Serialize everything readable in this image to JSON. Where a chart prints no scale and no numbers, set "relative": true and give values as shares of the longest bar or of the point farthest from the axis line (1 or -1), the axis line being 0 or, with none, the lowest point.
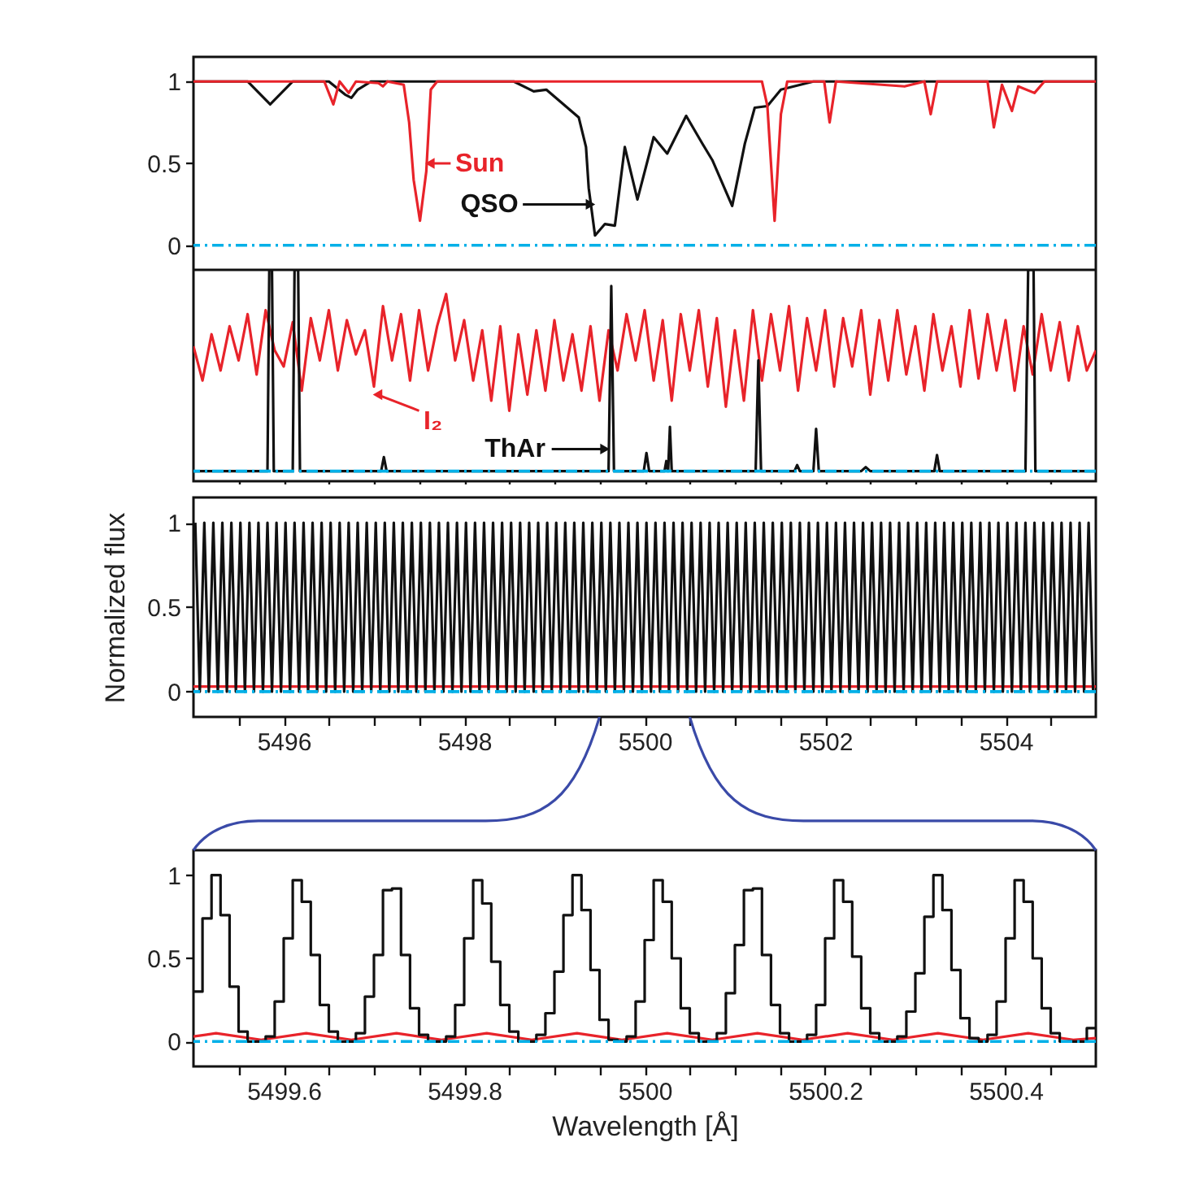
{
  "chart_data": [
    {
      "type": "line",
      "xlim": [
        5495,
        5505
      ],
      "ylim": [
        -0.15,
        1.15
      ],
      "tick_labels": "y",
      "xticks": [
        {
          "value": 5495.5,
          "label": null
        },
        5496,
        {
          "value": 5496.5,
          "label": null
        },
        {
          "value": 5497,
          "label": null
        },
        {
          "value": 5497.5,
          "label": null
        },
        5498,
        {
          "value": 5498.5,
          "label": null
        },
        {
          "value": 5499,
          "label": null
        },
        {
          "value": 5499.5,
          "label": null
        },
        5500,
        {
          "value": 5500.5,
          "label": null
        },
        {
          "value": 5501,
          "label": null
        },
        {
          "value": 5501.5,
          "label": null
        },
        5502,
        {
          "value": 5502.5,
          "label": null
        },
        {
          "value": 5503,
          "label": null
        },
        {
          "value": 5503.5,
          "label": null
        },
        5504,
        {
          "value": 5504.5,
          "label": null
        }
      ],
      "yticks": [
        0,
        0.5,
        1
      ],
      "ref_lines": [
        {
          "axis": "y",
          "value": 0,
          "color": "#00b0e8",
          "line_style": "dashed"
        }
      ],
      "series": [
        {
          "name": "QSO",
          "color": "#111111",
          "x": [
            5495,
            5495.6,
            5495.85,
            5496.1,
            5496.5,
            5496.68,
            5496.75,
            5496.82,
            5496.97,
            5498.55,
            5498.77,
            5498.91,
            5499.06,
            5499.27,
            5499.35,
            5499.38,
            5499.45,
            5499.56,
            5499.67,
            5499.78,
            5499.92,
            5500.1,
            5500.25,
            5500.46,
            5500.64,
            5500.75,
            5500.97,
            5501.11,
            5501.22,
            5501.36,
            5501.51,
            5501.87,
            5505
          ],
          "values": [
            1.0,
            1.0,
            0.86,
            1.0,
            1.0,
            0.92,
            0.9,
            0.95,
            1.0,
            1.0,
            0.94,
            0.95,
            0.88,
            0.78,
            0.6,
            0.35,
            0.06,
            0.13,
            0.12,
            0.6,
            0.28,
            0.66,
            0.56,
            0.79,
            0.62,
            0.52,
            0.24,
            0.62,
            0.84,
            0.85,
            0.95,
            1.0,
            1.0
          ]
        },
        {
          "name": "Sun",
          "color": "#e8232a",
          "x": [
            5495,
            5496.45,
            5496.55,
            5496.62,
            5496.72,
            5496.8,
            5497.05,
            5497.1,
            5497.15,
            5497.33,
            5497.39,
            5497.44,
            5497.51,
            5497.58,
            5497.63,
            5497.7,
            5501.3,
            5501.36,
            5501.44,
            5501.51,
            5501.58,
            5501.99,
            5502.05,
            5502.12,
            5502.88,
            5503.1,
            5503.17,
            5503.24,
            5503.8,
            5503.87,
            5503.96,
            5504.07,
            5504.14,
            5504.32,
            5504.43,
            5505
          ],
          "values": [
            1.0,
            1.0,
            0.86,
            1.0,
            0.93,
            1.0,
            0.99,
            0.97,
            1.0,
            0.98,
            0.75,
            0.4,
            0.15,
            0.45,
            0.95,
            1.0,
            1.0,
            0.85,
            0.15,
            0.8,
            1.0,
            1.0,
            0.75,
            1.0,
            0.97,
            1.0,
            0.8,
            1.0,
            1.0,
            0.72,
            0.98,
            0.82,
            0.97,
            0.93,
            1.0,
            1.0
          ]
        }
      ]
    },
    {
      "type": "line",
      "relative": true,
      "xlim": [
        5495,
        5505
      ],
      "tick_labels": false,
      "xticks": [
        {
          "value": 5495.5,
          "label": null
        },
        5496,
        {
          "value": 5496.5,
          "label": null
        },
        {
          "value": 5497,
          "label": null
        },
        {
          "value": 5497.5,
          "label": null
        },
        5498,
        {
          "value": 5498.5,
          "label": null
        },
        {
          "value": 5499,
          "label": null
        },
        {
          "value": 5499.5,
          "label": null
        },
        5500,
        {
          "value": 5500.5,
          "label": null
        },
        {
          "value": 5501,
          "label": null
        },
        {
          "value": 5501.5,
          "label": null
        },
        5502,
        {
          "value": 5502.5,
          "label": null
        },
        {
          "value": 5503,
          "label": null
        },
        {
          "value": 5503.5,
          "label": null
        },
        5504,
        {
          "value": 5504.5,
          "label": null
        }
      ],
      "ref_lines": [
        {
          "axis": "y",
          "value": 0,
          "color": "#00b0e8",
          "line_style": "dashed"
        }
      ],
      "series": [
        {
          "name": "I₂",
          "color": "#e8232a",
          "x": [
            5495.0,
            5495.1,
            5495.2,
            5495.3,
            5495.4,
            5495.5,
            5495.6,
            5495.7,
            5495.8,
            5495.9,
            5496.0,
            5496.1,
            5496.2,
            5496.3,
            5496.4,
            5496.5,
            5496.6,
            5496.7,
            5496.8,
            5496.9,
            5497.0,
            5497.1,
            5497.2,
            5497.3,
            5497.4,
            5497.5,
            5497.6,
            5497.7,
            5497.8,
            5497.9,
            5498.0,
            5498.1,
            5498.2,
            5498.3,
            5498.4,
            5498.5,
            5498.6,
            5498.7,
            5498.8,
            5498.9,
            5499.0,
            5499.1,
            5499.2,
            5499.3,
            5499.4,
            5499.5,
            5499.6,
            5499.7,
            5499.8,
            5499.9,
            5500.0,
            5500.1,
            5500.2,
            5500.3,
            5500.4,
            5500.5,
            5500.6,
            5500.7,
            5500.8,
            5500.9,
            5501.0,
            5501.1,
            5501.2,
            5501.3,
            5501.4,
            5501.5,
            5501.6,
            5501.7,
            5501.8,
            5501.9,
            5502.0,
            5502.1,
            5502.2,
            5502.3,
            5502.4,
            5502.5,
            5502.6,
            5502.7,
            5502.8,
            5502.9,
            5503.0,
            5503.1,
            5503.2,
            5503.3,
            5503.4,
            5503.5,
            5503.6,
            5503.7,
            5503.8,
            5503.9,
            5504.0,
            5504.1,
            5504.2,
            5504.3,
            5504.4,
            5504.5,
            5504.6,
            5504.7,
            5504.8,
            5504.9,
            5505.0
          ],
          "values": [
            0.62,
            0.45,
            0.68,
            0.5,
            0.72,
            0.55,
            0.78,
            0.48,
            0.8,
            0.6,
            0.52,
            0.74,
            0.4,
            0.76,
            0.55,
            0.8,
            0.5,
            0.75,
            0.58,
            0.7,
            0.42,
            0.82,
            0.55,
            0.78,
            0.45,
            0.8,
            0.5,
            0.72,
            0.88,
            0.55,
            0.75,
            0.45,
            0.7,
            0.35,
            0.72,
            0.3,
            0.68,
            0.38,
            0.7,
            0.4,
            0.75,
            0.45,
            0.68,
            0.4,
            0.72,
            0.35,
            0.7,
            0.5,
            0.78,
            0.55,
            0.8,
            0.45,
            0.75,
            0.35,
            0.78,
            0.5,
            0.8,
            0.42,
            0.76,
            0.32,
            0.7,
            0.35,
            0.8,
            0.45,
            0.78,
            0.5,
            0.82,
            0.4,
            0.76,
            0.5,
            0.8,
            0.42,
            0.76,
            0.52,
            0.8,
            0.38,
            0.75,
            0.45,
            0.8,
            0.48,
            0.72,
            0.4,
            0.78,
            0.5,
            0.72,
            0.42,
            0.8,
            0.46,
            0.78,
            0.5,
            0.75,
            0.4,
            0.72,
            0.48,
            0.78,
            0.5,
            0.74,
            0.45,
            0.72,
            0.5,
            0.6
          ]
        },
        {
          "name": "ThAr",
          "color": "#111111",
          "x": [
            5495,
            5495.82,
            5495.84,
            5495.87,
            5495.89,
            5496.1,
            5496.12,
            5496.16,
            5496.18,
            5497.08,
            5497.11,
            5497.14,
            5499.6,
            5499.63,
            5499.66,
            5499.99,
            5500.02,
            5500.05,
            5500.22,
            5500.24,
            5500.26,
            5500.28,
            5500.3,
            5501.23,
            5501.26,
            5501.29,
            5501.66,
            5501.69,
            5501.72,
            5501.87,
            5501.9,
            5501.93,
            5502.4,
            5502.45,
            5502.5,
            5503.21,
            5503.24,
            5503.27,
            5504.22,
            5504.25,
            5504.31,
            5504.33,
            5505
          ],
          "values": [
            0,
            0,
            1,
            1,
            0,
            0,
            1,
            1,
            0,
            0,
            0.07,
            0,
            0,
            0.92,
            0,
            0,
            0.09,
            0,
            0,
            0.05,
            0,
            0.22,
            0,
            0,
            0.55,
            0,
            0,
            0.03,
            0,
            0,
            0.21,
            0,
            0,
            0.02,
            0,
            0,
            0.08,
            0,
            0,
            1,
            1,
            0,
            0
          ]
        }
      ]
    },
    {
      "type": "line",
      "xlim": [
        5495,
        5505
      ],
      "ylim": [
        -0.15,
        1.15
      ],
      "ylabel": "Normalized flux",
      "xticks": [
        {
          "value": 5495.5,
          "label": null
        },
        5496,
        {
          "value": 5496.5,
          "label": null
        },
        {
          "value": 5497,
          "label": null
        },
        {
          "value": 5497.5,
          "label": null
        },
        5498,
        {
          "value": 5498.5,
          "label": null
        },
        {
          "value": 5499,
          "label": null
        },
        {
          "value": 5499.5,
          "label": null
        },
        5500,
        {
          "value": 5500.5,
          "label": null
        },
        {
          "value": 5501,
          "label": null
        },
        {
          "value": 5501.5,
          "label": null
        },
        5502,
        {
          "value": 5502.5,
          "label": null
        },
        {
          "value": 5503,
          "label": null
        },
        {
          "value": 5503.5,
          "label": null
        },
        5504,
        {
          "value": 5504.5,
          "label": null
        }
      ],
      "yticks": [
        0,
        0.5,
        1
      ],
      "ref_lines": [
        {
          "axis": "y",
          "value": 0,
          "color": "#00b0e8",
          "line_style": "dashed"
        }
      ],
      "series": [
        {
          "color": "#e8232a",
          "x": [
            5495,
            5505
          ],
          "values": [
            0.03,
            0.03
          ]
        },
        {
          "color": "#111111",
          "x": [
            5495.02,
            5495.07,
            5495.12,
            5495.17,
            5495.22,
            5495.27,
            5495.32,
            5495.37,
            5495.42,
            5495.47,
            5495.52,
            5495.57,
            5495.62,
            5495.67,
            5495.72,
            5495.77,
            5495.82,
            5495.87,
            5495.92,
            5495.97,
            5496.02,
            5496.07,
            5496.12,
            5496.17,
            5496.22,
            5496.27,
            5496.32,
            5496.37,
            5496.42,
            5496.47,
            5496.52,
            5496.57,
            5496.62,
            5496.67,
            5496.72,
            5496.77,
            5496.82,
            5496.87,
            5496.92,
            5496.97,
            5497.02,
            5497.07,
            5497.12,
            5497.17,
            5497.22,
            5497.27,
            5497.32,
            5497.37,
            5497.42,
            5497.47,
            5497.52,
            5497.57,
            5497.62,
            5497.67,
            5497.72,
            5497.77,
            5497.82,
            5497.87,
            5497.92,
            5497.97,
            5498.02,
            5498.07,
            5498.12,
            5498.17,
            5498.22,
            5498.27,
            5498.32,
            5498.37,
            5498.42,
            5498.47,
            5498.52,
            5498.57,
            5498.62,
            5498.67,
            5498.72,
            5498.77,
            5498.82,
            5498.87,
            5498.92,
            5498.97,
            5499.02,
            5499.07,
            5499.12,
            5499.17,
            5499.22,
            5499.27,
            5499.32,
            5499.37,
            5499.42,
            5499.47,
            5499.52,
            5499.57,
            5499.62,
            5499.67,
            5499.72,
            5499.77,
            5499.82,
            5499.87,
            5499.92,
            5499.97,
            5500.02,
            5500.07,
            5500.12,
            5500.17,
            5500.22,
            5500.27,
            5500.32,
            5500.37,
            5500.42,
            5500.47,
            5500.52,
            5500.57,
            5500.62,
            5500.67,
            5500.72,
            5500.77,
            5500.82,
            5500.87,
            5500.92,
            5500.97,
            5501.02,
            5501.07,
            5501.12,
            5501.17,
            5501.22,
            5501.27,
            5501.32,
            5501.37,
            5501.42,
            5501.47,
            5501.52,
            5501.57,
            5501.62,
            5501.67,
            5501.72,
            5501.77,
            5501.82,
            5501.87,
            5501.92,
            5501.97,
            5502.02,
            5502.07,
            5502.12,
            5502.17,
            5502.22,
            5502.27,
            5502.32,
            5502.37,
            5502.42,
            5502.47,
            5502.52,
            5502.57,
            5502.62,
            5502.67,
            5502.72,
            5502.77,
            5502.82,
            5502.87,
            5502.92,
            5502.97,
            5503.02,
            5503.07,
            5503.12,
            5503.17,
            5503.22,
            5503.27,
            5503.32,
            5503.37,
            5503.42,
            5503.47,
            5503.52,
            5503.57,
            5503.62,
            5503.67,
            5503.72,
            5503.77,
            5503.82,
            5503.87,
            5503.92,
            5503.97,
            5504.02,
            5504.07,
            5504.12,
            5504.17,
            5504.22,
            5504.27,
            5504.32,
            5504.37,
            5504.42,
            5504.47,
            5504.52,
            5504.57,
            5504.62,
            5504.67,
            5504.72,
            5504.77,
            5504.82,
            5504.87,
            5504.92,
            5504.97
          ],
          "values": [
            1,
            0,
            1,
            0,
            1,
            0,
            1,
            0,
            1,
            0,
            1,
            0,
            1,
            0,
            1,
            0,
            1,
            0,
            1,
            0,
            1,
            0,
            1,
            0,
            1,
            0,
            1,
            0,
            1,
            0,
            1,
            0,
            1,
            0,
            1,
            0,
            1,
            0,
            1,
            0,
            1,
            0,
            1,
            0,
            1,
            0,
            1,
            0,
            1,
            0,
            1,
            0,
            1,
            0,
            1,
            0,
            1,
            0,
            1,
            0,
            1,
            0,
            1,
            0,
            1,
            0,
            1,
            0,
            1,
            0,
            1,
            0,
            1,
            0,
            1,
            0,
            1,
            0,
            1,
            0,
            1,
            0,
            1,
            0,
            1,
            0,
            1,
            0,
            1,
            0,
            1,
            0,
            1,
            0,
            1,
            0,
            1,
            0,
            1,
            0,
            1,
            0,
            1,
            0,
            1,
            0,
            1,
            0,
            1,
            0,
            1,
            0,
            1,
            0,
            1,
            0,
            1,
            0,
            1,
            0,
            1,
            0,
            1,
            0,
            1,
            0,
            1,
            0,
            1,
            0,
            1,
            0,
            1,
            0,
            1,
            0,
            1,
            0,
            1,
            0,
            1,
            0,
            1,
            0,
            1,
            0,
            1,
            0,
            1,
            0,
            1,
            0,
            1,
            0,
            1,
            0,
            1,
            0,
            1,
            0,
            1,
            0,
            1,
            0,
            1,
            0,
            1,
            0,
            1,
            0,
            1,
            0,
            1,
            0,
            1,
            0,
            1,
            0,
            1,
            0,
            1,
            0,
            1,
            0,
            1,
            0,
            1,
            0,
            1,
            0,
            1,
            0,
            1,
            0,
            1,
            0,
            1,
            0,
            1,
            0
          ]
        }
      ]
    },
    {
      "type": "line",
      "xlim": [
        5499.5,
        5500.5
      ],
      "ylim": [
        -0.15,
        1.15
      ],
      "xlabel": "Wavelength [Å]",
      "xticks": [
        {
          "value": 5499.55,
          "label": null
        },
        5499.6,
        {
          "value": 5499.65,
          "label": null
        },
        {
          "value": 5499.7,
          "label": null
        },
        {
          "value": 5499.75,
          "label": null
        },
        5499.8,
        {
          "value": 5499.85,
          "label": null
        },
        {
          "value": 5499.9,
          "label": null
        },
        {
          "value": 5499.95,
          "label": null
        },
        5500,
        {
          "value": 5500.05,
          "label": null
        },
        {
          "value": 5500.1,
          "label": null
        },
        {
          "value": 5500.15,
          "label": null
        },
        5500.2,
        {
          "value": 5500.25,
          "label": null
        },
        {
          "value": 5500.3,
          "label": null
        },
        {
          "value": 5500.35,
          "label": null
        },
        5500.4,
        {
          "value": 5500.45,
          "label": null
        }
      ],
      "yticks": [
        0,
        0.5,
        1
      ],
      "ref_lines": [
        {
          "axis": "y",
          "value": 0,
          "color": "#00b0e8",
          "line_style": "dashed"
        }
      ],
      "series": [
        {
          "color": "#e8232a",
          "x": [
            5499.5,
            5499.525,
            5499.575,
            5499.625,
            5499.675,
            5499.725,
            5499.775,
            5499.825,
            5499.875,
            5499.925,
            5499.975,
            5500.025,
            5500.075,
            5500.125,
            5500.175,
            5500.225,
            5500.275,
            5500.325,
            5500.375,
            5500.425,
            5500.475,
            5500.5
          ],
          "values": [
            0.03,
            0.05,
            0.01,
            0.05,
            0.01,
            0.05,
            0.01,
            0.05,
            0.01,
            0.05,
            0.01,
            0.05,
            0.01,
            0.05,
            0.01,
            0.05,
            0.01,
            0.05,
            0.01,
            0.05,
            0.01,
            0.02
          ]
        },
        {
          "type": "step",
          "color": "#111111",
          "x": [
            5499.5,
            5499.51,
            5499.52,
            5499.53,
            5499.54,
            5499.55,
            5499.56,
            5499.57,
            5499.58,
            5499.59,
            5499.6,
            5499.61,
            5499.62,
            5499.63,
            5499.64,
            5499.65,
            5499.66,
            5499.67,
            5499.68,
            5499.69,
            5499.7,
            5499.71,
            5499.72,
            5499.73,
            5499.74,
            5499.75,
            5499.76,
            5499.77,
            5499.78,
            5499.79,
            5499.8,
            5499.81,
            5499.82,
            5499.83,
            5499.84,
            5499.85,
            5499.86,
            5499.87,
            5499.88,
            5499.89,
            5499.9,
            5499.91,
            5499.92,
            5499.93,
            5499.94,
            5499.95,
            5499.96,
            5499.97,
            5499.98,
            5499.99,
            5500.0,
            5500.01,
            5500.02,
            5500.03,
            5500.04,
            5500.05,
            5500.06,
            5500.07,
            5500.08,
            5500.09,
            5500.1,
            5500.11,
            5500.12,
            5500.13,
            5500.14,
            5500.15,
            5500.16,
            5500.17,
            5500.18,
            5500.19,
            5500.2,
            5500.21,
            5500.22,
            5500.23,
            5500.24,
            5500.25,
            5500.26,
            5500.27,
            5500.28,
            5500.29,
            5500.3,
            5500.31,
            5500.32,
            5500.33,
            5500.34,
            5500.35,
            5500.36,
            5500.37,
            5500.38,
            5500.39,
            5500.4,
            5500.41,
            5500.42,
            5500.43,
            5500.44,
            5500.45,
            5500.46,
            5500.47,
            5500.48,
            5500.49,
            5500.5
          ],
          "values": [
            0.3,
            0.74,
            1.0,
            0.76,
            0.33,
            0.06,
            0.0,
            0.0,
            0.03,
            0.24,
            0.62,
            0.97,
            0.84,
            0.52,
            0.22,
            0.06,
            0.0,
            0.0,
            0.05,
            0.27,
            0.52,
            0.91,
            0.92,
            0.52,
            0.2,
            0.04,
            0.0,
            0.0,
            0.03,
            0.22,
            0.62,
            0.97,
            0.83,
            0.48,
            0.22,
            0.06,
            0.0,
            0.0,
            0.04,
            0.17,
            0.42,
            0.76,
            1.0,
            0.79,
            0.43,
            0.13,
            0.01,
            0.0,
            0.03,
            0.24,
            0.61,
            0.97,
            0.84,
            0.5,
            0.2,
            0.05,
            0.0,
            0.0,
            0.05,
            0.29,
            0.58,
            0.91,
            0.92,
            0.52,
            0.22,
            0.05,
            0.0,
            0.0,
            0.04,
            0.22,
            0.62,
            0.97,
            0.84,
            0.51,
            0.2,
            0.05,
            0.0,
            0.0,
            0.03,
            0.18,
            0.41,
            0.75,
            1.0,
            0.79,
            0.43,
            0.14,
            0.02,
            0.0,
            0.04,
            0.24,
            0.62,
            0.97,
            0.84,
            0.5,
            0.2,
            0.05,
            0.0,
            0.0,
            0.0,
            0.08,
            0.08
          ]
        }
      ]
    }
  ]
}
